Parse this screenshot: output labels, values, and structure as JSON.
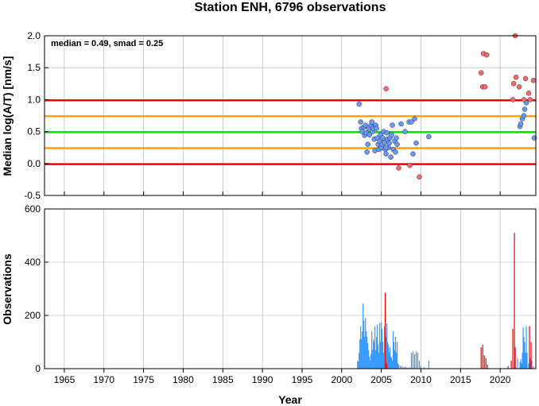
{
  "chart_data": [
    {
      "type": "scatter",
      "title": "Station ENH, 6796 observations",
      "ylabel": "Median log(A/T) [nm/s]",
      "annotation": "median = 0.49, smad = 0.25",
      "xlim": [
        1962.5,
        2024.5
      ],
      "ylim": [
        -0.5,
        2.0
      ],
      "x_ticks": [
        1965,
        1970,
        1975,
        1980,
        1985,
        1990,
        1995,
        2000,
        2005,
        2010,
        2015,
        2020
      ],
      "y_ticks": [
        -0.5,
        0.0,
        0.5,
        1.0,
        1.5,
        2.0
      ],
      "y_tick_labels": [
        "-0.5",
        "0.0",
        "0.5",
        "1.0",
        "1.5",
        "2.0"
      ],
      "grid": true,
      "reference_lines": [
        {
          "y": 0.49,
          "color": "#00e000"
        },
        {
          "y": 0.74,
          "color": "#ffa500"
        },
        {
          "y": 0.24,
          "color": "#ffa500"
        },
        {
          "y": 0.99,
          "color": "#ee0000"
        },
        {
          "y": -0.01,
          "color": "#ee0000"
        }
      ],
      "series": [
        {
          "color": "#6699ff",
          "points": [
            [
              2002.2,
              0.93
            ],
            [
              2002.4,
              0.65
            ],
            [
              2002.5,
              0.55
            ],
            [
              2002.6,
              0.5
            ],
            [
              2002.8,
              0.57
            ],
            [
              2002.9,
              0.44
            ],
            [
              2003.0,
              0.6
            ],
            [
              2003.1,
              0.48
            ],
            [
              2003.2,
              0.18
            ],
            [
              2003.3,
              0.3
            ],
            [
              2003.4,
              0.55
            ],
            [
              2003.5,
              0.45
            ],
            [
              2003.7,
              0.6
            ],
            [
              2003.9,
              0.5
            ],
            [
              2004.0,
              0.55
            ],
            [
              2004.1,
              0.38
            ],
            [
              2004.2,
              0.2
            ],
            [
              2004.3,
              0.6
            ],
            [
              2004.4,
              0.55
            ],
            [
              2004.5,
              0.4
            ],
            [
              2004.6,
              0.3
            ],
            [
              2004.7,
              0.22
            ],
            [
              2004.8,
              0.35
            ],
            [
              2004.9,
              0.45
            ],
            [
              2005.0,
              0.25
            ],
            [
              2005.1,
              0.3
            ],
            [
              2005.2,
              0.4
            ],
            [
              2005.3,
              0.5
            ],
            [
              2005.4,
              0.33
            ],
            [
              2005.5,
              0.22
            ],
            [
              2005.6,
              0.15
            ],
            [
              2005.7,
              0.48
            ],
            [
              2005.8,
              0.38
            ],
            [
              2005.9,
              0.25
            ],
            [
              2006.0,
              0.32
            ],
            [
              2006.1,
              0.4
            ],
            [
              2006.2,
              0.1
            ],
            [
              2006.3,
              0.45
            ],
            [
              2006.4,
              0.6
            ],
            [
              2006.5,
              0.22
            ],
            [
              2006.7,
              0.35
            ],
            [
              2006.8,
              0.18
            ],
            [
              2006.9,
              0.4
            ],
            [
              2007.0,
              0.3
            ],
            [
              2007.5,
              0.62
            ],
            [
              2008.0,
              0.5
            ],
            [
              2008.5,
              0.65
            ],
            [
              2008.8,
              0.65
            ],
            [
              2009.2,
              0.7
            ],
            [
              2009.4,
              0.32
            ],
            [
              2009.0,
              0.15
            ],
            [
              2011.0,
              0.42
            ],
            [
              2003.8,
              0.65
            ],
            [
              2005.6,
              0.25
            ],
            [
              2022.5,
              0.58
            ],
            [
              2022.6,
              0.62
            ],
            [
              2022.8,
              0.7
            ],
            [
              2023.0,
              0.75
            ],
            [
              2023.1,
              0.85
            ],
            [
              2023.3,
              0.95
            ],
            [
              2024.3,
              0.4
            ]
          ]
        },
        {
          "color": "#ff6666",
          "points": [
            [
              2005.6,
              1.17
            ],
            [
              2007.2,
              -0.07
            ],
            [
              2008.6,
              -0.03
            ],
            [
              2009.8,
              -0.21
            ],
            [
              2017.6,
              1.42
            ],
            [
              2017.8,
              1.2
            ],
            [
              2017.9,
              1.72
            ],
            [
              2018.1,
              1.2
            ],
            [
              2018.3,
              1.7
            ],
            [
              2021.6,
              1.0
            ],
            [
              2021.7,
              1.25
            ],
            [
              2021.9,
              2.0
            ],
            [
              2022.0,
              1.35
            ],
            [
              2022.4,
              1.2
            ],
            [
              2023.0,
              1.0
            ],
            [
              2023.2,
              1.33
            ],
            [
              2023.6,
              1.1
            ],
            [
              2023.8,
              1.0
            ],
            [
              2024.2,
              1.3
            ]
          ]
        }
      ]
    },
    {
      "type": "bar",
      "xlabel": "Year",
      "ylabel": "Observations",
      "xlim": [
        1962.5,
        2024.5
      ],
      "ylim": [
        0,
        600
      ],
      "x_ticks": [
        1965,
        1970,
        1975,
        1980,
        1985,
        1990,
        1995,
        2000,
        2005,
        2010,
        2015,
        2020
      ],
      "x_tick_labels": [
        "1965",
        "1970",
        "1975",
        "1980",
        "1985",
        "1990",
        "1995",
        "2000",
        "2005",
        "2010",
        "2015",
        "2020"
      ],
      "y_ticks": [
        0,
        200,
        400,
        600
      ],
      "y_tick_labels": [
        "0",
        "200",
        "400",
        "600"
      ],
      "grid": true,
      "series": [
        {
          "color": "#3399ff",
          "bars": [
            [
              2002.0,
              30
            ],
            [
              2002.1,
              25
            ],
            [
              2002.2,
              60
            ],
            [
              2002.3,
              110
            ],
            [
              2002.4,
              160
            ],
            [
              2002.5,
              110
            ],
            [
              2002.6,
              140
            ],
            [
              2002.7,
              245
            ],
            [
              2002.8,
              180
            ],
            [
              2002.9,
              120
            ],
            [
              2003.0,
              190
            ],
            [
              2003.1,
              140
            ],
            [
              2003.2,
              120
            ],
            [
              2003.3,
              95
            ],
            [
              2003.4,
              70
            ],
            [
              2003.5,
              45
            ],
            [
              2003.6,
              30
            ],
            [
              2003.7,
              55
            ],
            [
              2003.8,
              140
            ],
            [
              2003.9,
              70
            ],
            [
              2004.0,
              110
            ],
            [
              2004.1,
              100
            ],
            [
              2004.2,
              160
            ],
            [
              2004.3,
              70
            ],
            [
              2004.4,
              120
            ],
            [
              2004.5,
              165
            ],
            [
              2004.6,
              90
            ],
            [
              2004.7,
              60
            ],
            [
              2004.8,
              170
            ],
            [
              2004.9,
              100
            ],
            [
              2005.0,
              175
            ],
            [
              2005.1,
              150
            ],
            [
              2005.2,
              100
            ],
            [
              2005.3,
              60
            ],
            [
              2005.4,
              160
            ],
            [
              2005.5,
              140
            ],
            [
              2005.6,
              120
            ],
            [
              2005.7,
              170
            ],
            [
              2005.8,
              100
            ],
            [
              2005.9,
              90
            ],
            [
              2006.0,
              60
            ],
            [
              2006.1,
              80
            ],
            [
              2006.2,
              45
            ],
            [
              2006.3,
              40
            ],
            [
              2006.4,
              30
            ],
            [
              2006.5,
              140
            ],
            [
              2006.6,
              100
            ],
            [
              2006.7,
              70
            ],
            [
              2006.8,
              120
            ],
            [
              2006.9,
              60
            ],
            [
              2007.0,
              100
            ],
            [
              2007.1,
              20
            ],
            [
              2007.2,
              15
            ],
            [
              2007.4,
              10
            ],
            [
              2007.6,
              10
            ],
            [
              2007.8,
              5
            ],
            [
              2008.0,
              8
            ],
            [
              2008.2,
              5
            ],
            [
              2008.4,
              3
            ],
            [
              2008.6,
              5
            ],
            [
              2008.8,
              60
            ],
            [
              2009.0,
              65
            ],
            [
              2009.2,
              55
            ],
            [
              2009.4,
              65
            ],
            [
              2009.6,
              60
            ],
            [
              2009.8,
              30
            ],
            [
              2010.0,
              10
            ],
            [
              2010.4,
              5
            ],
            [
              2011.0,
              30
            ],
            [
              2022.0,
              5
            ],
            [
              2022.2,
              40
            ],
            [
              2022.5,
              25
            ],
            [
              2022.6,
              35
            ],
            [
              2022.7,
              20
            ],
            [
              2022.8,
              60
            ],
            [
              2022.9,
              155
            ],
            [
              2023.0,
              120
            ],
            [
              2023.1,
              100
            ],
            [
              2023.2,
              60
            ],
            [
              2023.3,
              160
            ],
            [
              2023.4,
              60
            ],
            [
              2023.6,
              20
            ],
            [
              2023.8,
              40
            ],
            [
              2024.0,
              30
            ],
            [
              2024.2,
              10
            ]
          ]
        },
        {
          "color": "#ee0000",
          "bars": [
            [
              2005.5,
              285
            ],
            [
              2005.7,
              20
            ],
            [
              2017.6,
              80
            ],
            [
              2017.8,
              90
            ],
            [
              2018.0,
              50
            ],
            [
              2018.2,
              40
            ],
            [
              2018.4,
              15
            ],
            [
              2021.0,
              10
            ],
            [
              2021.4,
              30
            ],
            [
              2021.6,
              150
            ],
            [
              2021.8,
              510
            ],
            [
              2021.9,
              80
            ],
            [
              2023.7,
              160
            ],
            [
              2023.9,
              100
            ]
          ]
        }
      ]
    }
  ]
}
